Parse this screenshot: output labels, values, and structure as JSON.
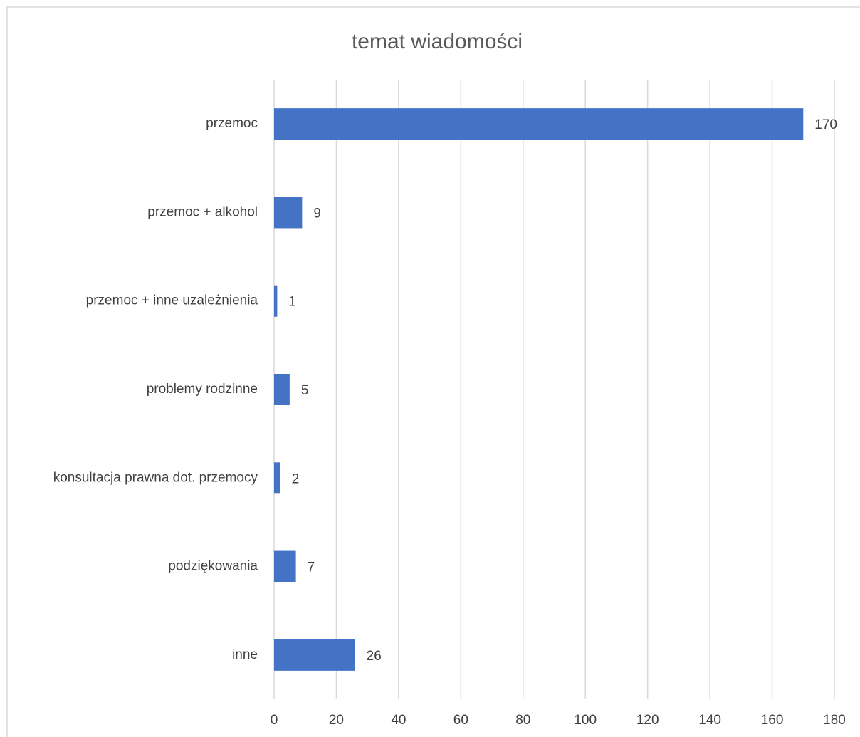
{
  "chart_data": {
    "type": "bar",
    "orientation": "horizontal",
    "title": "temat wiadomości",
    "categories": [
      "przemoc",
      "przemoc + alkohol",
      "przemoc + inne uzależnienia",
      "problemy rodzinne",
      "konsultacja prawna dot. przemocy",
      "podziękowania",
      "inne"
    ],
    "values": [
      170,
      9,
      1,
      5,
      2,
      7,
      26
    ],
    "color": "#4472c4",
    "xlim": [
      0,
      180
    ],
    "xticks": [
      0,
      20,
      40,
      60,
      80,
      100,
      120,
      140,
      160,
      180
    ],
    "grid": true,
    "data_labels": true
  }
}
